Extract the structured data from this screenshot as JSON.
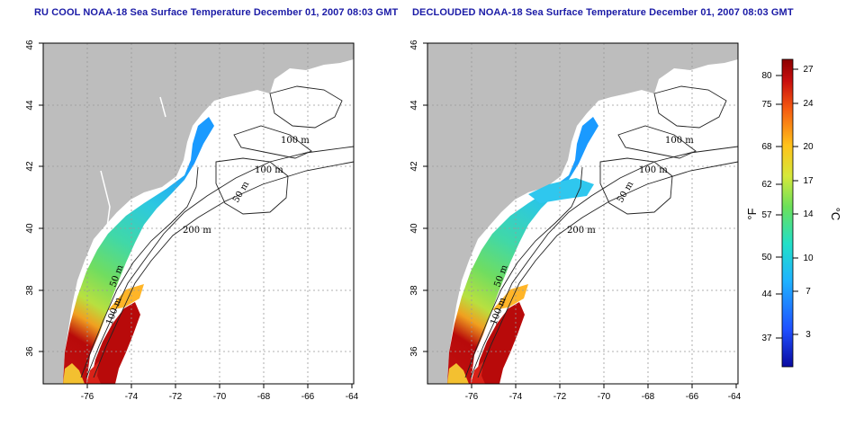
{
  "titles": {
    "left": "RU COOL NOAA-18 Sea Surface Temperature December 01, 2007 08:03 GMT",
    "right": "DECLOUDED NOAA-18 Sea Surface Temperature December 01, 2007 08:03 GMT"
  },
  "axes": {
    "x_ticks": [
      "-76",
      "-74",
      "-72",
      "-70",
      "-68",
      "-66",
      "-64"
    ],
    "y_ticks": [
      "36",
      "38",
      "40",
      "42",
      "44",
      "46"
    ]
  },
  "contour_labels": [
    "100 m",
    "100 m",
    "50 m",
    "200 m",
    "50 m",
    "100 m"
  ],
  "colorbar": {
    "unit_left": "°F",
    "unit_right": "°C",
    "f_ticks": [
      "80",
      "75",
      "68",
      "62",
      "57",
      "50",
      "44",
      "37"
    ],
    "c_ticks": [
      "27",
      "24",
      "20",
      "17",
      "14",
      "10",
      "7",
      "3"
    ]
  },
  "colors": {
    "land": "#bdbdbd",
    "title": "#1a1aa6",
    "warm": "#c00000",
    "cool": "#29b8ea"
  }
}
